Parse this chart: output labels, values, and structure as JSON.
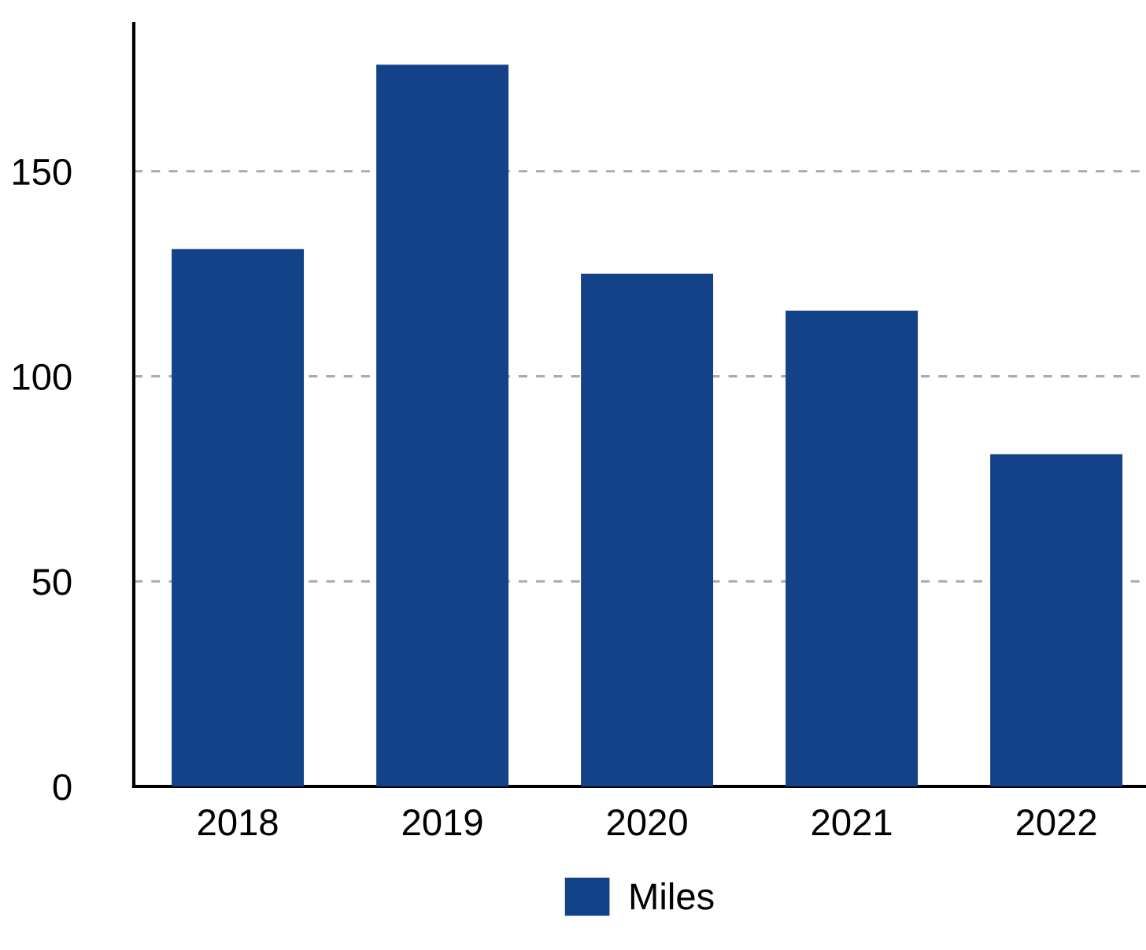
{
  "chart_data": {
    "type": "bar",
    "categories": [
      "2018",
      "2019",
      "2020",
      "2021",
      "2022"
    ],
    "series": [
      {
        "name": "Miles",
        "color": "#134289",
        "values": [
          131,
          176,
          125,
          116,
          81
        ]
      }
    ],
    "ylim": [
      0,
      186
    ],
    "yticks": [
      0,
      50,
      100,
      150
    ],
    "grid": "y",
    "legend": "bottom"
  }
}
